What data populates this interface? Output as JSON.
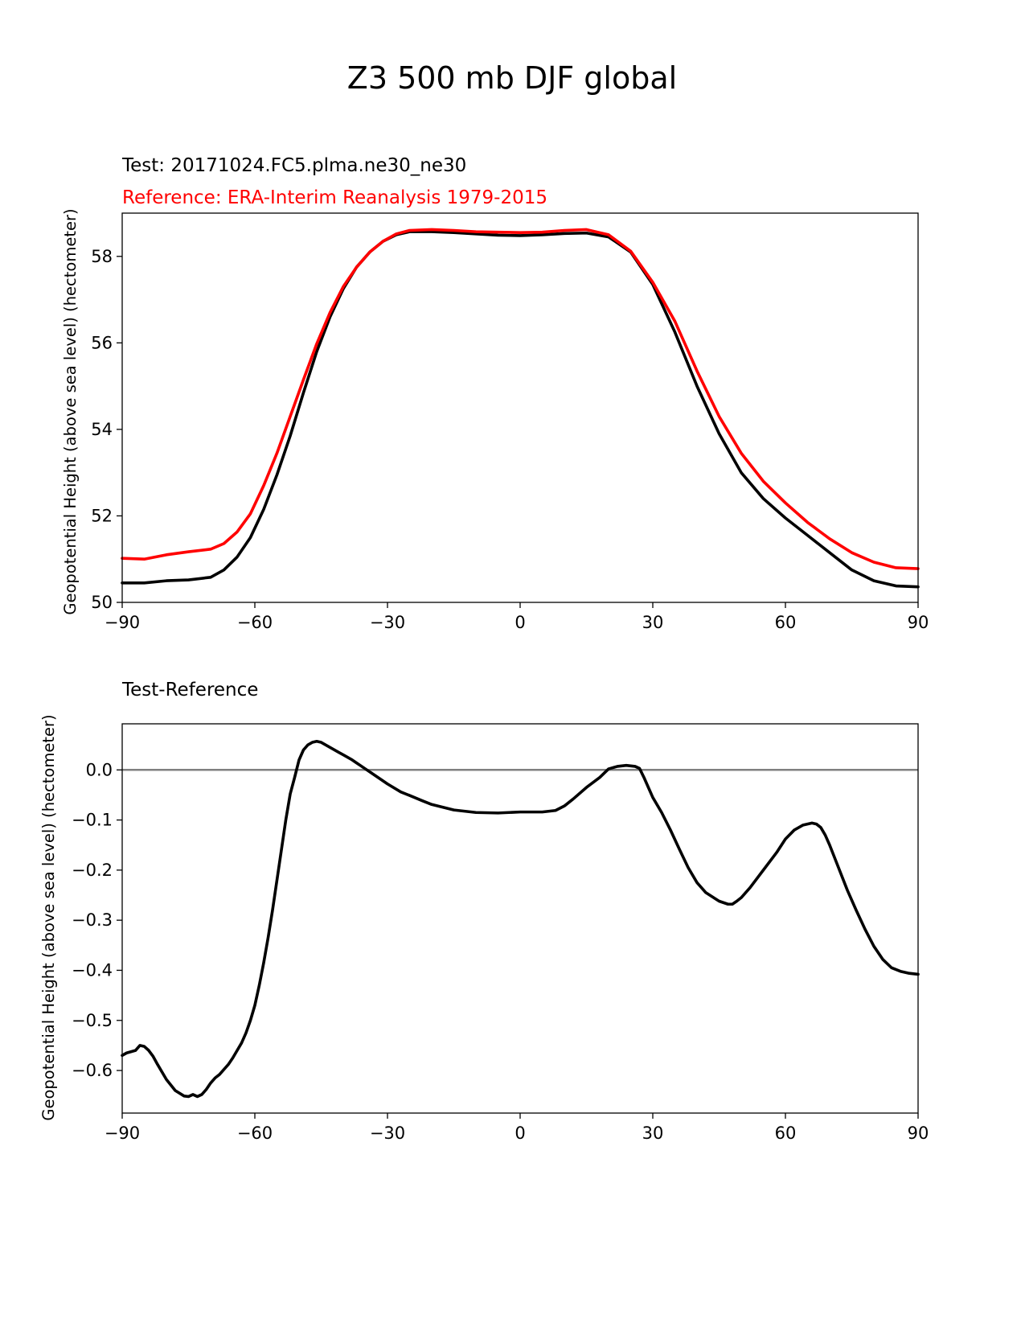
{
  "figure_title": "Z3 500 mb DJF global",
  "colors": {
    "test": "#000000",
    "reference": "#ff0000",
    "zero_line": "#808080",
    "axes": "#000000"
  },
  "chart_data": [
    {
      "type": "line",
      "title_test": "Test: 20171024.FC5.plma.ne30_ne30",
      "title_reference": "Reference: ERA-Interim Reanalysis 1979-2015",
      "xlabel": "",
      "ylabel": "Geopotential Height (above sea level) (hectometer)",
      "xlim": [
        -90,
        90
      ],
      "ylim": [
        50,
        59
      ],
      "xticks": [
        -90,
        -60,
        -30,
        0,
        30,
        60,
        90
      ],
      "xtick_labels": [
        "−90",
        "−60",
        "−30",
        "0",
        "30",
        "60",
        "90"
      ],
      "yticks": [
        50,
        52,
        54,
        56,
        58
      ],
      "ytick_labels": [
        "50",
        "52",
        "54",
        "56",
        "58"
      ],
      "series": [
        {
          "name": "Test",
          "color": "#000000",
          "x": [
            -90,
            -85,
            -80,
            -75,
            -70,
            -67,
            -64,
            -61,
            -58,
            -55,
            -52,
            -49,
            -46,
            -43,
            -40,
            -37,
            -34,
            -31,
            -28,
            -25,
            -20,
            -15,
            -10,
            -5,
            0,
            5,
            10,
            15,
            20,
            25,
            30,
            35,
            40,
            45,
            50,
            55,
            60,
            65,
            70,
            75,
            80,
            85,
            90
          ],
          "values": [
            50.45,
            50.45,
            50.5,
            50.52,
            50.58,
            50.75,
            51.05,
            51.5,
            52.15,
            52.95,
            53.85,
            54.85,
            55.8,
            56.6,
            57.25,
            57.75,
            58.1,
            58.35,
            58.5,
            58.57,
            58.57,
            58.55,
            58.52,
            58.49,
            58.48,
            58.5,
            58.53,
            58.54,
            58.45,
            58.1,
            57.35,
            56.25,
            55.0,
            53.9,
            53.0,
            52.4,
            51.95,
            51.55,
            51.15,
            50.75,
            50.5,
            50.38,
            50.36
          ]
        },
        {
          "name": "Reference",
          "color": "#ff0000",
          "x": [
            -90,
            -85,
            -80,
            -75,
            -70,
            -67,
            -64,
            -61,
            -58,
            -55,
            -52,
            -49,
            -46,
            -43,
            -40,
            -37,
            -34,
            -31,
            -28,
            -25,
            -20,
            -15,
            -10,
            -5,
            0,
            5,
            10,
            15,
            20,
            25,
            30,
            35,
            40,
            45,
            50,
            55,
            60,
            65,
            70,
            75,
            80,
            85,
            90
          ],
          "values": [
            51.02,
            51.0,
            51.1,
            51.17,
            51.23,
            51.36,
            51.63,
            52.05,
            52.7,
            53.45,
            54.3,
            55.15,
            55.98,
            56.7,
            57.3,
            57.75,
            58.1,
            58.35,
            58.52,
            58.6,
            58.62,
            58.6,
            58.57,
            58.56,
            58.55,
            58.56,
            58.6,
            58.62,
            58.5,
            58.12,
            57.4,
            56.5,
            55.35,
            54.3,
            53.45,
            52.8,
            52.3,
            51.85,
            51.47,
            51.15,
            50.93,
            50.8,
            50.78
          ]
        }
      ]
    },
    {
      "type": "line",
      "title": "Test-Reference",
      "xlabel": "",
      "ylabel": "Geopotential Height (above sea level) (hectometer)",
      "xlim": [
        -90,
        90
      ],
      "ylim": [
        -0.685,
        0.092
      ],
      "xticks": [
        -90,
        -60,
        -30,
        0,
        30,
        60,
        90
      ],
      "xtick_labels": [
        "−90",
        "−60",
        "−30",
        "0",
        "30",
        "60",
        "90"
      ],
      "yticks": [
        0.0,
        -0.1,
        -0.2,
        -0.3,
        -0.4,
        -0.5,
        -0.6
      ],
      "ytick_labels": [
        "0.0",
        "−0.1",
        "−0.2",
        "−0.3",
        "−0.4",
        "−0.5",
        "−0.6"
      ],
      "reference_line": 0.0,
      "series": [
        {
          "name": "Test-Reference",
          "color": "#000000",
          "x": [
            -90,
            -89,
            -87,
            -86,
            -85,
            -84,
            -83,
            -82,
            -80,
            -78,
            -76,
            -75,
            -74,
            -73,
            -72,
            -71,
            -70,
            -69,
            -68,
            -67,
            -66,
            -65,
            -64,
            -63,
            -62,
            -61,
            -60,
            -59,
            -58,
            -57,
            -56,
            -55,
            -54,
            -53,
            -52,
            -51,
            -50,
            -49,
            -48,
            -47,
            -46,
            -45,
            -44,
            -43,
            -42,
            -41,
            -40,
            -39,
            -38,
            -37,
            -36,
            -35,
            -33,
            -30,
            -27,
            -25,
            -22,
            -20,
            -15,
            -10,
            -5,
            0,
            5,
            8,
            10,
            12,
            15,
            18,
            20,
            22,
            24,
            26,
            27,
            28,
            29,
            30,
            32,
            34,
            36,
            38,
            40,
            42,
            45,
            47,
            48,
            49,
            50,
            52,
            55,
            58,
            60,
            62,
            64,
            66,
            67,
            68,
            69,
            70,
            72,
            74,
            76,
            78,
            80,
            82,
            84,
            86,
            88,
            90
          ],
          "values": [
            -0.57,
            -0.565,
            -0.56,
            -0.55,
            -0.552,
            -0.56,
            -0.572,
            -0.588,
            -0.618,
            -0.64,
            -0.651,
            -0.652,
            -0.648,
            -0.652,
            -0.648,
            -0.638,
            -0.625,
            -0.615,
            -0.608,
            -0.598,
            -0.588,
            -0.575,
            -0.56,
            -0.545,
            -0.525,
            -0.5,
            -0.47,
            -0.43,
            -0.385,
            -0.335,
            -0.28,
            -0.22,
            -0.16,
            -0.1,
            -0.048,
            -0.015,
            0.02,
            0.04,
            0.05,
            0.055,
            0.057,
            0.055,
            0.05,
            0.045,
            0.04,
            0.035,
            0.03,
            0.025,
            0.02,
            0.014,
            0.008,
            0.002,
            -0.01,
            -0.028,
            -0.044,
            -0.051,
            -0.062,
            -0.069,
            -0.08,
            -0.085,
            -0.086,
            -0.084,
            -0.084,
            -0.081,
            -0.072,
            -0.058,
            -0.035,
            -0.015,
            0.002,
            0.007,
            0.009,
            0.007,
            0.003,
            -0.015,
            -0.035,
            -0.055,
            -0.085,
            -0.12,
            -0.158,
            -0.195,
            -0.225,
            -0.245,
            -0.262,
            -0.268,
            -0.268,
            -0.262,
            -0.255,
            -0.235,
            -0.2,
            -0.165,
            -0.138,
            -0.12,
            -0.11,
            -0.106,
            -0.108,
            -0.115,
            -0.13,
            -0.15,
            -0.195,
            -0.24,
            -0.28,
            -0.318,
            -0.352,
            -0.378,
            -0.395,
            -0.402,
            -0.406,
            -0.408
          ]
        }
      ]
    }
  ]
}
